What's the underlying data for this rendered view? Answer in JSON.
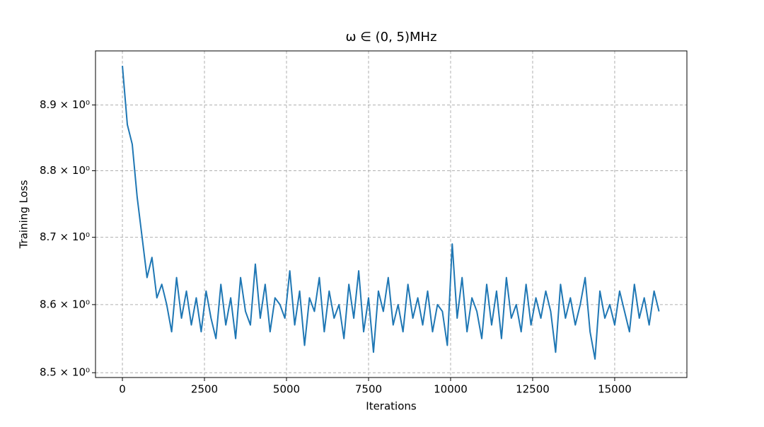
{
  "chart_data": {
    "type": "line",
    "title": "ω ∈ (0, 5)MHz",
    "x_label": "Iterations",
    "y_label": "Training Loss",
    "x": [
      0,
      150,
      300,
      450,
      600,
      750,
      900,
      1050,
      1200,
      1350,
      1500,
      1650,
      1800,
      1950,
      2100,
      2250,
      2400,
      2550,
      2700,
      2850,
      3000,
      3150,
      3300,
      3450,
      3600,
      3750,
      3900,
      4050,
      4200,
      4350,
      4500,
      4650,
      4800,
      4950,
      5100,
      5250,
      5400,
      5550,
      5700,
      5850,
      6000,
      6150,
      6300,
      6450,
      6600,
      6750,
      6900,
      7050,
      7200,
      7350,
      7500,
      7650,
      7800,
      7950,
      8100,
      8250,
      8400,
      8550,
      8700,
      8850,
      9000,
      9150,
      9300,
      9450,
      9600,
      9750,
      9900,
      10050,
      10200,
      10350,
      10500,
      10650,
      10800,
      10950,
      11100,
      11250,
      11400,
      11550,
      11700,
      11850,
      12000,
      12150,
      12300,
      12450,
      12600,
      12750,
      12900,
      13050,
      13200,
      13350,
      13500,
      13650,
      13800,
      13950,
      14100,
      14250,
      14400,
      14550,
      14700,
      14850,
      15000,
      15150,
      15300,
      15450,
      15600,
      15750,
      15900,
      16050,
      16200,
      16350
    ],
    "series": [
      {
        "name": "Training Loss",
        "color": "#1f77b4",
        "values": [
          8.96,
          8.87,
          8.84,
          8.76,
          8.7,
          8.64,
          8.67,
          8.61,
          8.63,
          8.6,
          8.56,
          8.64,
          8.58,
          8.62,
          8.57,
          8.61,
          8.56,
          8.62,
          8.58,
          8.55,
          8.63,
          8.57,
          8.61,
          8.55,
          8.64,
          8.59,
          8.57,
          8.66,
          8.58,
          8.63,
          8.56,
          8.61,
          8.6,
          8.58,
          8.65,
          8.57,
          8.62,
          8.54,
          8.61,
          8.59,
          8.64,
          8.56,
          8.62,
          8.58,
          8.6,
          8.55,
          8.63,
          8.58,
          8.65,
          8.56,
          8.61,
          8.53,
          8.62,
          8.59,
          8.64,
          8.57,
          8.6,
          8.56,
          8.63,
          8.58,
          8.61,
          8.57,
          8.62,
          8.56,
          8.6,
          8.59,
          8.54,
          8.69,
          8.58,
          8.64,
          8.56,
          8.61,
          8.59,
          8.55,
          8.63,
          8.57,
          8.62,
          8.55,
          8.64,
          8.58,
          8.6,
          8.56,
          8.63,
          8.57,
          8.61,
          8.58,
          8.62,
          8.59,
          8.53,
          8.63,
          8.58,
          8.61,
          8.57,
          8.6,
          8.64,
          8.56,
          8.52,
          8.62,
          8.58,
          8.6,
          8.57,
          8.62,
          8.59,
          8.56,
          8.63,
          8.58,
          8.61,
          8.57,
          8.62,
          8.59
        ]
      }
    ],
    "xlim": [
      -820,
      17200
    ],
    "ylim": [
      8.493,
      8.983
    ],
    "y_scale": "log",
    "grid": true,
    "xticks": [
      0,
      2500,
      5000,
      7500,
      10000,
      12500,
      15000
    ],
    "yticks": [
      {
        "value": 8.5,
        "label": "8.5 × 10⁰"
      },
      {
        "value": 8.6,
        "label": "8.6 × 10⁰"
      },
      {
        "value": 8.7,
        "label": "8.7 × 10⁰"
      },
      {
        "value": 8.8,
        "label": "8.8 × 10⁰"
      },
      {
        "value": 8.9,
        "label": "8.9 × 10⁰"
      }
    ]
  }
}
